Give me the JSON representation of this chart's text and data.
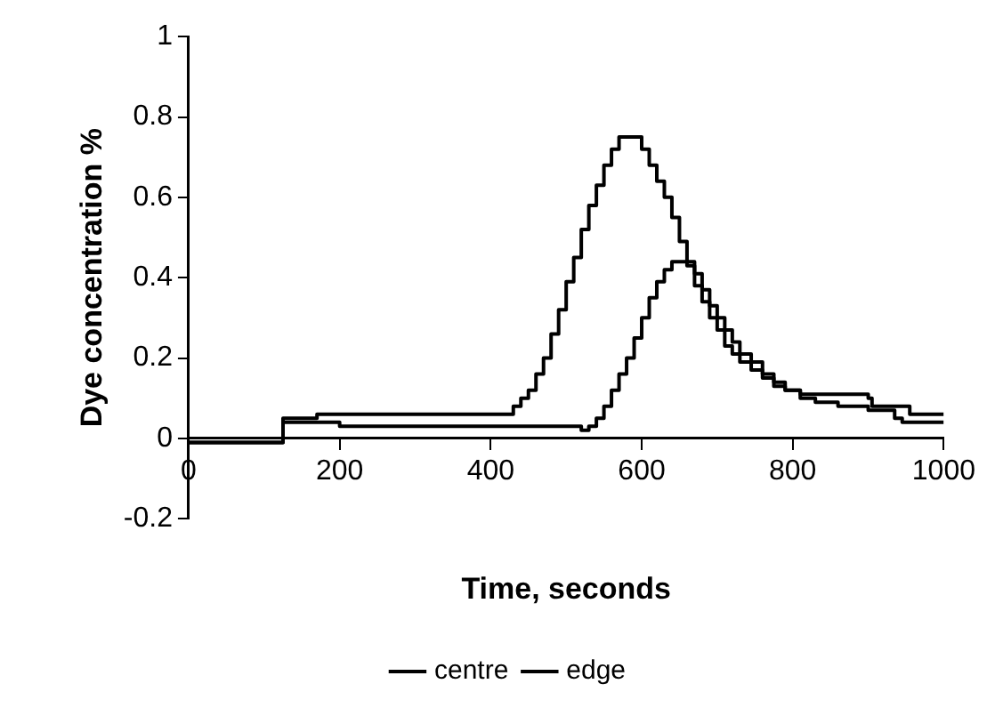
{
  "chart_data": {
    "type": "step",
    "xlabel": "Time, seconds",
    "ylabel": "Dye concentration %",
    "xlim": [
      0,
      1000
    ],
    "xticks": [
      0,
      200,
      400,
      600,
      800,
      1000
    ],
    "ylim": [
      -0.2,
      1
    ],
    "yticks": [
      -0.2,
      0,
      0.2,
      0.4,
      0.6,
      0.8,
      1
    ],
    "grid": false,
    "legend": "bottom",
    "marker": "none",
    "line_style": "solid",
    "series": [
      {
        "name": "centre",
        "color": "#000000",
        "x": [
          0,
          125,
          170,
          420,
          430,
          440,
          450,
          460,
          470,
          480,
          490,
          500,
          510,
          520,
          530,
          540,
          550,
          560,
          570,
          590,
          600,
          610,
          620,
          630,
          640,
          650,
          660,
          670,
          680,
          690,
          700,
          710,
          720,
          730,
          745,
          760,
          775,
          790,
          810,
          900,
          905,
          950,
          955,
          1000
        ],
        "values": [
          -0.01,
          0.05,
          0.06,
          0.06,
          0.08,
          0.1,
          0.12,
          0.16,
          0.2,
          0.26,
          0.32,
          0.39,
          0.45,
          0.52,
          0.58,
          0.63,
          0.68,
          0.72,
          0.75,
          0.75,
          0.72,
          0.68,
          0.64,
          0.6,
          0.55,
          0.49,
          0.43,
          0.38,
          0.34,
          0.3,
          0.27,
          0.23,
          0.21,
          0.19,
          0.17,
          0.15,
          0.13,
          0.12,
          0.11,
          0.1,
          0.08,
          0.08,
          0.06,
          0.06
        ]
      },
      {
        "name": "edge",
        "color": "#000000",
        "x": [
          0,
          125,
          200,
          520,
          530,
          540,
          550,
          560,
          570,
          580,
          590,
          600,
          610,
          620,
          630,
          640,
          660,
          670,
          680,
          690,
          700,
          710,
          720,
          730,
          745,
          760,
          775,
          790,
          810,
          830,
          860,
          900,
          935,
          945,
          1000
        ],
        "values": [
          -0.01,
          0.04,
          0.03,
          0.02,
          0.03,
          0.05,
          0.08,
          0.12,
          0.16,
          0.2,
          0.25,
          0.3,
          0.35,
          0.39,
          0.42,
          0.44,
          0.44,
          0.41,
          0.37,
          0.33,
          0.3,
          0.27,
          0.24,
          0.21,
          0.19,
          0.16,
          0.14,
          0.12,
          0.1,
          0.09,
          0.08,
          0.07,
          0.05,
          0.04,
          0.04
        ]
      }
    ]
  }
}
